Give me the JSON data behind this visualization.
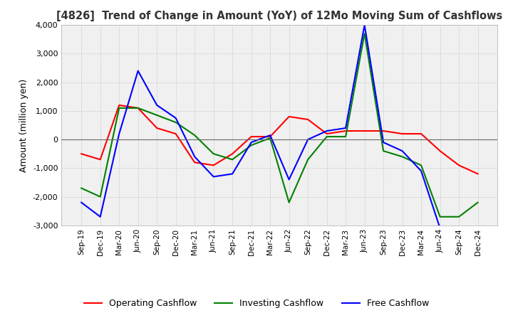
{
  "title": "[4826]  Trend of Change in Amount (YoY) of 12Mo Moving Sum of Cashflows",
  "ylabel": "Amount (million yen)",
  "ylim": [
    -3000,
    4000
  ],
  "yticks": [
    -3000,
    -2000,
    -1000,
    0,
    1000,
    2000,
    3000,
    4000
  ],
  "x_labels": [
    "Sep-19",
    "Dec-19",
    "Mar-20",
    "Jun-20",
    "Sep-20",
    "Dec-20",
    "Mar-21",
    "Jun-21",
    "Sep-21",
    "Dec-21",
    "Mar-22",
    "Jun-22",
    "Sep-22",
    "Dec-22",
    "Mar-23",
    "Jun-23",
    "Sep-23",
    "Dec-23",
    "Mar-24",
    "Jun-24",
    "Sep-24",
    "Dec-24"
  ],
  "operating": [
    -500,
    -700,
    1200,
    1100,
    400,
    200,
    -800,
    -900,
    -500,
    100,
    100,
    800,
    700,
    200,
    300,
    300,
    300,
    200,
    200,
    -400,
    -900,
    -1200
  ],
  "investing": [
    -1700,
    -2000,
    1100,
    1100,
    850,
    600,
    150,
    -500,
    -700,
    -200,
    50,
    -2200,
    -700,
    100,
    100,
    3700,
    -400,
    -600,
    -900,
    -2700,
    -2700,
    -2200
  ],
  "free": [
    -2200,
    -2700,
    200,
    2400,
    1200,
    750,
    -600,
    -1300,
    -1200,
    -100,
    150,
    -1400,
    0,
    300,
    400,
    4000,
    -100,
    -400,
    -1100,
    -3100,
    null,
    null
  ],
  "colors": {
    "operating": "#ff0000",
    "investing": "#008000",
    "free": "#0000ff"
  },
  "legend_labels": [
    "Operating Cashflow",
    "Investing Cashflow",
    "Free Cashflow"
  ],
  "background_color": "#f0f0f0",
  "plot_bg_color": "#f0f0f0",
  "grid_color": "#aaaaaa",
  "grid_style": "dotted"
}
